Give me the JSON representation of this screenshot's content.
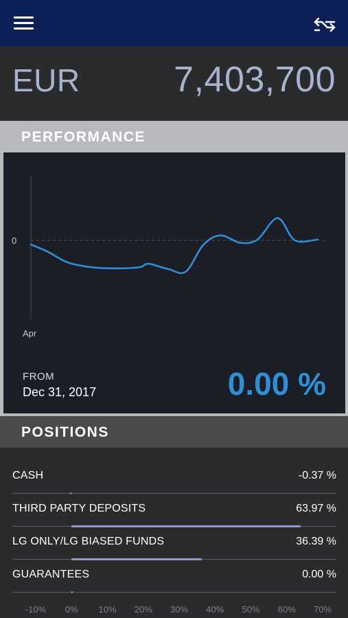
{
  "account": {
    "currency": "EUR",
    "amount": "7,403,700"
  },
  "performance": {
    "header": "PERFORMANCE",
    "from_label": "FROM",
    "from_date": "Dec 31, 2017",
    "percent": "0.00 %"
  },
  "chart_data": {
    "type": "line",
    "x_labels": [
      "Apr"
    ],
    "y_labels": [
      "0"
    ],
    "zero_line": "dashed",
    "line_color": "#2f8fd6",
    "series": [
      {
        "values": [
          -0.5,
          -1.4,
          -2.7,
          -3.3,
          -3.4,
          -3.25,
          -2.9,
          -2.9,
          -3.5,
          -3.8,
          -0.6,
          0.6,
          -0.3,
          0.1,
          2.7,
          0.0,
          0.1
        ],
        "x": [
          0,
          0.06,
          0.13,
          0.22,
          0.31,
          0.38,
          0.4,
          0.42,
          0.48,
          0.54,
          0.6,
          0.66,
          0.73,
          0.79,
          0.86,
          0.92,
          1.0
        ]
      }
    ]
  },
  "positions": {
    "header": "POSITIONS",
    "items": [
      {
        "name": "CASH",
        "value": "-0.37 %",
        "pct": -0.37
      },
      {
        "name": "THIRD PARTY DEPOSITS",
        "value": "63.97 %",
        "pct": 63.97
      },
      {
        "name": "LG ONLY/LG BIASED FUNDS",
        "value": "36.39 %",
        "pct": 36.39
      },
      {
        "name": "GUARANTEES",
        "value": "0.00 %",
        "pct": 0.0
      }
    ],
    "axis_labels": [
      "-10%",
      "0%",
      "10%",
      "20%",
      "30%",
      "40%",
      "50%",
      "60%",
      "70%"
    ]
  },
  "colors": {
    "topbar": "#0c1f57",
    "accent": "#2f8fd6",
    "bar": "#8f9bc6"
  },
  "icons": {
    "menu": "hamburger-menu-icon",
    "swap": "swap-arrows-icon"
  }
}
